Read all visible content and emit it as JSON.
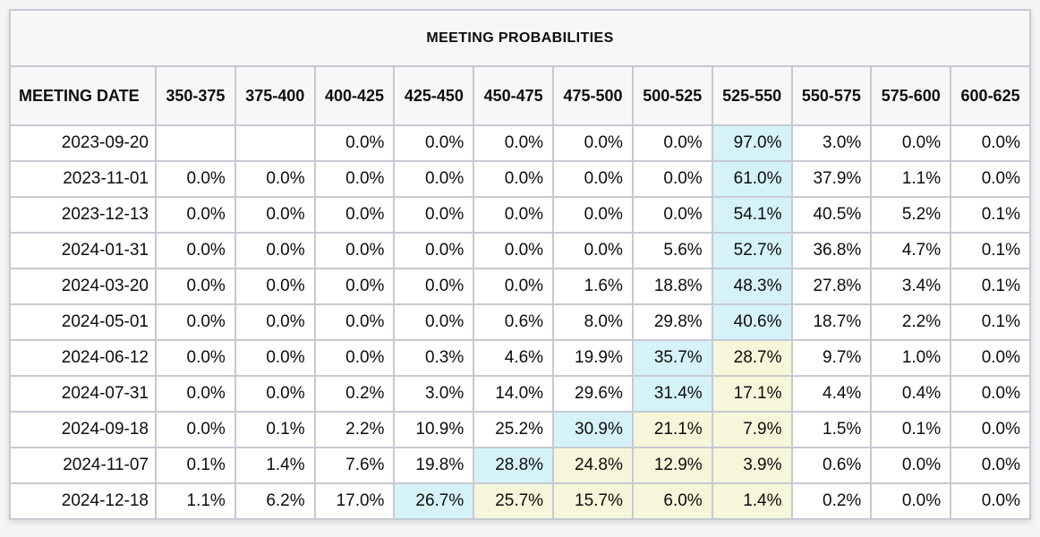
{
  "title": "MEETING PROBABILITIES",
  "colors": {
    "highlight_cyan": "#d5f2f9",
    "highlight_yellow": "#f6f6da",
    "grid_border": "#c6c9d2",
    "page_background": "#f4f4f5",
    "header_background": "#f7f7f8"
  },
  "table": {
    "date_header": "MEETING DATE",
    "rate_headers": [
      "350-375",
      "375-400",
      "400-425",
      "425-450",
      "450-475",
      "475-500",
      "500-525",
      "525-550",
      "550-575",
      "575-600",
      "600-625"
    ],
    "rows": [
      {
        "date": "2023-09-20",
        "cells": [
          {
            "v": ""
          },
          {
            "v": ""
          },
          {
            "v": "0.0%"
          },
          {
            "v": "0.0%"
          },
          {
            "v": "0.0%"
          },
          {
            "v": "0.0%"
          },
          {
            "v": "0.0%"
          },
          {
            "v": "97.0%",
            "h": "cyan"
          },
          {
            "v": "3.0%"
          },
          {
            "v": "0.0%"
          },
          {
            "v": "0.0%"
          }
        ]
      },
      {
        "date": "2023-11-01",
        "cells": [
          {
            "v": "0.0%"
          },
          {
            "v": "0.0%"
          },
          {
            "v": "0.0%"
          },
          {
            "v": "0.0%"
          },
          {
            "v": "0.0%"
          },
          {
            "v": "0.0%"
          },
          {
            "v": "0.0%"
          },
          {
            "v": "61.0%",
            "h": "cyan"
          },
          {
            "v": "37.9%"
          },
          {
            "v": "1.1%"
          },
          {
            "v": "0.0%"
          }
        ]
      },
      {
        "date": "2023-12-13",
        "cells": [
          {
            "v": "0.0%"
          },
          {
            "v": "0.0%"
          },
          {
            "v": "0.0%"
          },
          {
            "v": "0.0%"
          },
          {
            "v": "0.0%"
          },
          {
            "v": "0.0%"
          },
          {
            "v": "0.0%"
          },
          {
            "v": "54.1%",
            "h": "cyan"
          },
          {
            "v": "40.5%"
          },
          {
            "v": "5.2%"
          },
          {
            "v": "0.1%"
          }
        ]
      },
      {
        "date": "2024-01-31",
        "cells": [
          {
            "v": "0.0%"
          },
          {
            "v": "0.0%"
          },
          {
            "v": "0.0%"
          },
          {
            "v": "0.0%"
          },
          {
            "v": "0.0%"
          },
          {
            "v": "0.0%"
          },
          {
            "v": "5.6%"
          },
          {
            "v": "52.7%",
            "h": "cyan"
          },
          {
            "v": "36.8%"
          },
          {
            "v": "4.7%"
          },
          {
            "v": "0.1%"
          }
        ]
      },
      {
        "date": "2024-03-20",
        "cells": [
          {
            "v": "0.0%"
          },
          {
            "v": "0.0%"
          },
          {
            "v": "0.0%"
          },
          {
            "v": "0.0%"
          },
          {
            "v": "0.0%"
          },
          {
            "v": "1.6%"
          },
          {
            "v": "18.8%"
          },
          {
            "v": "48.3%",
            "h": "cyan"
          },
          {
            "v": "27.8%"
          },
          {
            "v": "3.4%"
          },
          {
            "v": "0.1%"
          }
        ]
      },
      {
        "date": "2024-05-01",
        "cells": [
          {
            "v": "0.0%"
          },
          {
            "v": "0.0%"
          },
          {
            "v": "0.0%"
          },
          {
            "v": "0.0%"
          },
          {
            "v": "0.6%"
          },
          {
            "v": "8.0%"
          },
          {
            "v": "29.8%"
          },
          {
            "v": "40.6%",
            "h": "cyan"
          },
          {
            "v": "18.7%"
          },
          {
            "v": "2.2%"
          },
          {
            "v": "0.1%"
          }
        ]
      },
      {
        "date": "2024-06-12",
        "cells": [
          {
            "v": "0.0%"
          },
          {
            "v": "0.0%"
          },
          {
            "v": "0.0%"
          },
          {
            "v": "0.3%"
          },
          {
            "v": "4.6%"
          },
          {
            "v": "19.9%"
          },
          {
            "v": "35.7%",
            "h": "cyan"
          },
          {
            "v": "28.7%",
            "h": "yellow"
          },
          {
            "v": "9.7%"
          },
          {
            "v": "1.0%"
          },
          {
            "v": "0.0%"
          }
        ]
      },
      {
        "date": "2024-07-31",
        "cells": [
          {
            "v": "0.0%"
          },
          {
            "v": "0.0%"
          },
          {
            "v": "0.2%"
          },
          {
            "v": "3.0%"
          },
          {
            "v": "14.0%"
          },
          {
            "v": "29.6%"
          },
          {
            "v": "31.4%",
            "h": "cyan"
          },
          {
            "v": "17.1%",
            "h": "yellow"
          },
          {
            "v": "4.4%"
          },
          {
            "v": "0.4%"
          },
          {
            "v": "0.0%"
          }
        ]
      },
      {
        "date": "2024-09-18",
        "cells": [
          {
            "v": "0.0%"
          },
          {
            "v": "0.1%"
          },
          {
            "v": "2.2%"
          },
          {
            "v": "10.9%"
          },
          {
            "v": "25.2%"
          },
          {
            "v": "30.9%",
            "h": "cyan"
          },
          {
            "v": "21.1%",
            "h": "yellow"
          },
          {
            "v": "7.9%",
            "h": "yellow"
          },
          {
            "v": "1.5%"
          },
          {
            "v": "0.1%"
          },
          {
            "v": "0.0%"
          }
        ]
      },
      {
        "date": "2024-11-07",
        "cells": [
          {
            "v": "0.1%"
          },
          {
            "v": "1.4%"
          },
          {
            "v": "7.6%"
          },
          {
            "v": "19.8%"
          },
          {
            "v": "28.8%",
            "h": "cyan"
          },
          {
            "v": "24.8%",
            "h": "yellow"
          },
          {
            "v": "12.9%",
            "h": "yellow"
          },
          {
            "v": "3.9%",
            "h": "yellow"
          },
          {
            "v": "0.6%"
          },
          {
            "v": "0.0%"
          },
          {
            "v": "0.0%"
          }
        ]
      },
      {
        "date": "2024-12-18",
        "cells": [
          {
            "v": "1.1%"
          },
          {
            "v": "6.2%"
          },
          {
            "v": "17.0%"
          },
          {
            "v": "26.7%",
            "h": "cyan"
          },
          {
            "v": "25.7%",
            "h": "yellow"
          },
          {
            "v": "15.7%",
            "h": "yellow"
          },
          {
            "v": "6.0%",
            "h": "yellow"
          },
          {
            "v": "1.4%",
            "h": "yellow"
          },
          {
            "v": "0.2%"
          },
          {
            "v": "0.0%"
          },
          {
            "v": "0.0%"
          }
        ]
      }
    ]
  },
  "chart_data": {
    "type": "table",
    "title": "MEETING PROBABILITIES",
    "columns": [
      "MEETING DATE",
      "350-375",
      "375-400",
      "400-425",
      "425-450",
      "450-475",
      "475-500",
      "500-525",
      "525-550",
      "550-575",
      "575-600",
      "600-625"
    ],
    "rows": [
      [
        "2023-09-20",
        null,
        null,
        0.0,
        0.0,
        0.0,
        0.0,
        0.0,
        97.0,
        3.0,
        0.0,
        0.0
      ],
      [
        "2023-11-01",
        0.0,
        0.0,
        0.0,
        0.0,
        0.0,
        0.0,
        0.0,
        61.0,
        37.9,
        1.1,
        0.0
      ],
      [
        "2023-12-13",
        0.0,
        0.0,
        0.0,
        0.0,
        0.0,
        0.0,
        0.0,
        54.1,
        40.5,
        5.2,
        0.1
      ],
      [
        "2024-01-31",
        0.0,
        0.0,
        0.0,
        0.0,
        0.0,
        0.0,
        5.6,
        52.7,
        36.8,
        4.7,
        0.1
      ],
      [
        "2024-03-20",
        0.0,
        0.0,
        0.0,
        0.0,
        0.0,
        1.6,
        18.8,
        48.3,
        27.8,
        3.4,
        0.1
      ],
      [
        "2024-05-01",
        0.0,
        0.0,
        0.0,
        0.0,
        0.6,
        8.0,
        29.8,
        40.6,
        18.7,
        2.2,
        0.1
      ],
      [
        "2024-06-12",
        0.0,
        0.0,
        0.0,
        0.3,
        4.6,
        19.9,
        35.7,
        28.7,
        9.7,
        1.0,
        0.0
      ],
      [
        "2024-07-31",
        0.0,
        0.0,
        0.2,
        3.0,
        14.0,
        29.6,
        31.4,
        17.1,
        4.4,
        0.4,
        0.0
      ],
      [
        "2024-09-18",
        0.0,
        0.1,
        2.2,
        10.9,
        25.2,
        30.9,
        21.1,
        7.9,
        1.5,
        0.1,
        0.0
      ],
      [
        "2024-11-07",
        0.1,
        1.4,
        7.6,
        19.8,
        28.8,
        24.8,
        12.9,
        3.9,
        0.6,
        0.0,
        0.0
      ],
      [
        "2024-12-18",
        1.1,
        6.2,
        17.0,
        26.7,
        25.7,
        15.7,
        6.0,
        1.4,
        0.2,
        0.0,
        0.0
      ]
    ],
    "units": "percent",
    "notes_layout": "values right-aligned; highest probability per row highlighted cyan, secondary ranges highlighted pale yellow"
  }
}
